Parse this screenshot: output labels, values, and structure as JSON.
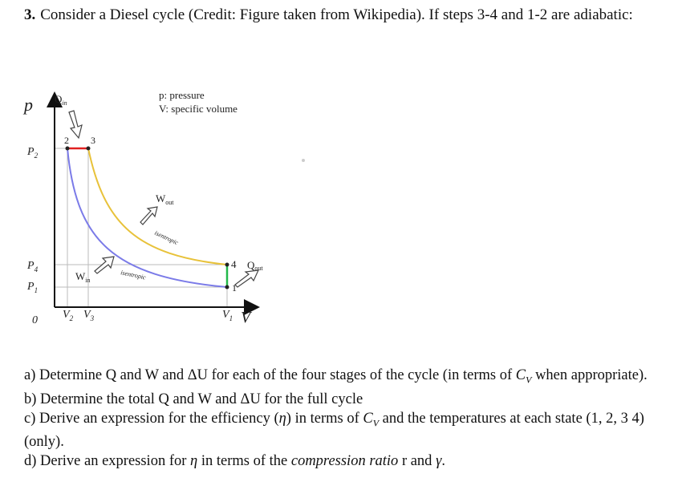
{
  "question": {
    "number": "3.",
    "text": "Consider a Diesel cycle (Credit: Figure taken from Wikipedia). If steps 3-4 and 1-2 are adiabatic:"
  },
  "figure": {
    "axis_p": "p",
    "axis_v": "V",
    "origin": "0",
    "legend": [
      "p: pressure",
      "V: specific volume"
    ],
    "q_in": {
      "text": "Q",
      "sub": "in"
    },
    "q_out": {
      "text": "Q",
      "sub": "out"
    },
    "w_in": {
      "text": "W",
      "sub": "in"
    },
    "w_out": {
      "text": "W",
      "sub": "out"
    },
    "p2": {
      "text": "P",
      "sub": "2"
    },
    "p4": {
      "text": "P",
      "sub": "4"
    },
    "p1": {
      "text": "P",
      "sub": "1"
    },
    "v2": {
      "text": "V",
      "sub": "2"
    },
    "v3": {
      "text": "V",
      "sub": "3"
    },
    "v1": {
      "text": "V",
      "sub": "1"
    },
    "points": [
      "1",
      "2",
      "3",
      "4"
    ],
    "isentropic": [
      "isentropic",
      "isentropic"
    ]
  },
  "parts": [
    {
      "segments": [
        {
          "text": "a) Determine Q and W and ΔU for each of the four stages of the cycle (in terms of "
        },
        {
          "math": "C",
          "sub": "V"
        },
        {
          "text": " when appropriate)."
        }
      ]
    },
    {
      "segments": [
        {
          "text": "b) Determine the total Q and W and ΔU for the full cycle"
        }
      ]
    },
    {
      "segments": [
        {
          "text": "c) Derive an expression for the efficiency ("
        },
        {
          "math": "η"
        },
        {
          "text": ") in terms of "
        },
        {
          "math": "C",
          "sub": "V"
        },
        {
          "text": " and the temperatures at each state (1, 2, 3 4) (only)."
        }
      ]
    },
    {
      "segments": [
        {
          "text": "d) Derive an expression for "
        },
        {
          "math": "η"
        },
        {
          "text": " in terms of the "
        },
        {
          "italic": "compression ratio"
        },
        {
          "text": " r and "
        },
        {
          "math": "γ"
        },
        {
          "text": "."
        }
      ]
    }
  ]
}
